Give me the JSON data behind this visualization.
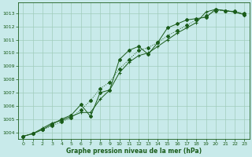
{
  "title": "Graphe pression niveau de la mer (hPa)",
  "bg_color": "#c8eaea",
  "grid_color": "#a0ccbb",
  "line_color": "#1a5c1a",
  "xlim": [
    -0.5,
    23.5
  ],
  "ylim": [
    1003.5,
    1013.8
  ],
  "xticks": [
    0,
    1,
    2,
    3,
    4,
    5,
    6,
    7,
    8,
    9,
    10,
    11,
    12,
    13,
    14,
    15,
    16,
    17,
    18,
    19,
    20,
    21,
    22,
    23
  ],
  "yticks": [
    1004,
    1005,
    1006,
    1007,
    1008,
    1009,
    1010,
    1011,
    1012,
    1013
  ],
  "series1_x": [
    0,
    1,
    2,
    3,
    4,
    5,
    6,
    7,
    8,
    9,
    10,
    11,
    12,
    13,
    14,
    15,
    16,
    17,
    18,
    19,
    20,
    21,
    22,
    23
  ],
  "series1_y": [
    1003.7,
    1003.9,
    1004.3,
    1004.7,
    1004.9,
    1005.2,
    1005.5,
    1005.5,
    1006.5,
    1007.2,
    1008.5,
    1009.3,
    1009.8,
    1010.0,
    1010.5,
    1011.0,
    1011.5,
    1011.9,
    1012.3,
    1013.1,
    1013.3,
    1013.2,
    1013.1,
    1012.9
  ],
  "series2_x": [
    0,
    1,
    2,
    3,
    4,
    5,
    6,
    7,
    8,
    9,
    10,
    11,
    12,
    13,
    14,
    15,
    16,
    17,
    18,
    19,
    20,
    21,
    22,
    23
  ],
  "series2_y": [
    1003.7,
    1003.9,
    1004.2,
    1004.5,
    1004.8,
    1005.1,
    1005.7,
    1006.4,
    1007.3,
    1007.8,
    1008.8,
    1009.5,
    1010.2,
    1010.4,
    1010.8,
    1011.3,
    1011.7,
    1012.1,
    1012.5,
    1012.8,
    1013.2,
    1013.2,
    1013.15,
    1013.0
  ],
  "series3_x": [
    0,
    1,
    2,
    3,
    4,
    5,
    6,
    7,
    8,
    9,
    10,
    11,
    12,
    13,
    14,
    15,
    16,
    17,
    18,
    19,
    20,
    21,
    22,
    23
  ],
  "series3_y": [
    1003.7,
    1003.9,
    1004.2,
    1004.6,
    1005.0,
    1005.3,
    1006.1,
    1005.2,
    1007.0,
    1007.2,
    1009.5,
    1010.2,
    1010.5,
    1009.9,
    1010.8,
    1011.9,
    1012.2,
    1012.5,
    1012.6,
    1012.7,
    1013.3,
    1013.2,
    1013.1,
    1012.9
  ]
}
